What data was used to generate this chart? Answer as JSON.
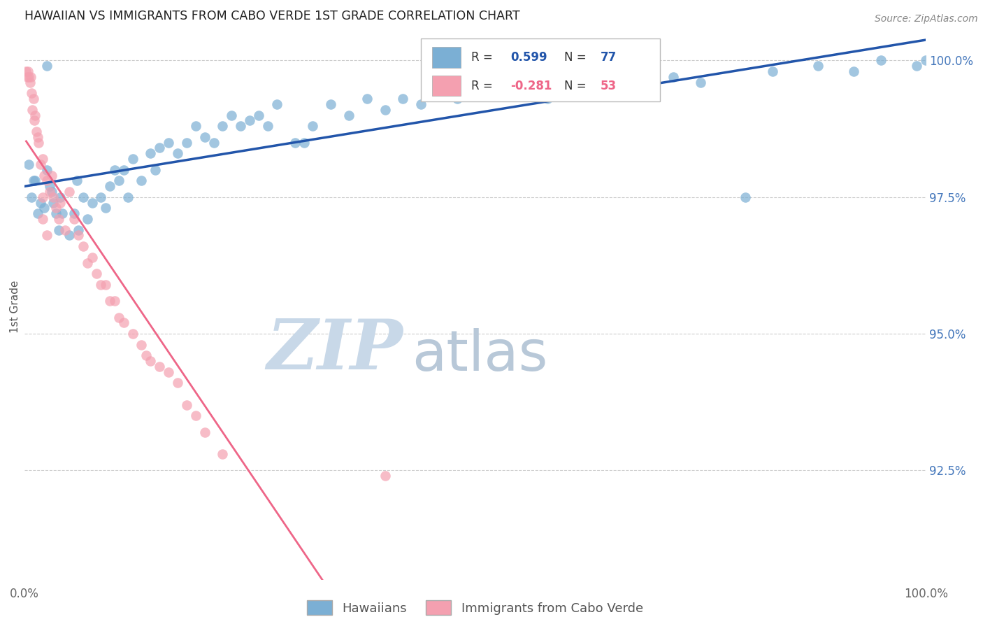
{
  "title": "HAWAIIAN VS IMMIGRANTS FROM CABO VERDE 1ST GRADE CORRELATION CHART",
  "source": "Source: ZipAtlas.com",
  "ylabel": "1st Grade",
  "xlim": [
    0.0,
    1.0
  ],
  "ylim": [
    0.905,
    1.005
  ],
  "yticks": [
    0.925,
    0.95,
    0.975,
    1.0
  ],
  "ytick_labels": [
    "92.5%",
    "95.0%",
    "97.5%",
    "100.0%"
  ],
  "xticks": [
    0.0,
    0.1,
    0.2,
    0.3,
    0.4,
    0.5,
    0.6,
    0.7,
    0.8,
    0.9,
    1.0
  ],
  "xtick_labels": [
    "0.0%",
    "",
    "",
    "",
    "",
    "",
    "",
    "",
    "",
    "",
    "100.0%"
  ],
  "blue_R": 0.599,
  "blue_N": 77,
  "pink_R": -0.281,
  "pink_N": 53,
  "blue_color": "#7BAFD4",
  "pink_color": "#F4A0B0",
  "blue_line_color": "#2255AA",
  "pink_line_color": "#EE6688",
  "legend_blue": "Hawaiians",
  "legend_pink": "Immigrants from Cabo Verde",
  "watermark_zip": "ZIP",
  "watermark_atlas": "atlas",
  "watermark_color_zip": "#C8D8E8",
  "watermark_color_atlas": "#B8C8D8",
  "background_color": "#FFFFFF",
  "title_color": "#222222",
  "right_tick_color": "#4477BB",
  "grid_color": "#CCCCCC",
  "blue_x": [
    0.005,
    0.008,
    0.01,
    0.012,
    0.015,
    0.018,
    0.022,
    0.025,
    0.025,
    0.028,
    0.03,
    0.032,
    0.035,
    0.038,
    0.04,
    0.042,
    0.05,
    0.055,
    0.058,
    0.065,
    0.07,
    0.075,
    0.085,
    0.09,
    0.095,
    0.1,
    0.105,
    0.11,
    0.115,
    0.12,
    0.13,
    0.14,
    0.15,
    0.16,
    0.17,
    0.18,
    0.19,
    0.2,
    0.21,
    0.22,
    0.23,
    0.24,
    0.25,
    0.27,
    0.28,
    0.3,
    0.32,
    0.34,
    0.36,
    0.38,
    0.4,
    0.42,
    0.44,
    0.46,
    0.5,
    0.52,
    0.55,
    0.58,
    0.62,
    0.65,
    0.68,
    0.72,
    0.75,
    0.8,
    0.83,
    0.88,
    0.92,
    0.95,
    0.99,
    1.0,
    0.06,
    0.145,
    0.26,
    0.31,
    0.48,
    0.57,
    0.7
  ],
  "blue_y": [
    0.981,
    0.975,
    0.978,
    0.978,
    0.972,
    0.974,
    0.973,
    0.98,
    0.999,
    0.977,
    0.976,
    0.974,
    0.972,
    0.969,
    0.975,
    0.972,
    0.968,
    0.972,
    0.978,
    0.975,
    0.971,
    0.974,
    0.975,
    0.973,
    0.977,
    0.98,
    0.978,
    0.98,
    0.975,
    0.982,
    0.978,
    0.983,
    0.984,
    0.985,
    0.983,
    0.985,
    0.988,
    0.986,
    0.985,
    0.988,
    0.99,
    0.988,
    0.989,
    0.988,
    0.992,
    0.985,
    0.988,
    0.992,
    0.99,
    0.993,
    0.991,
    0.993,
    0.992,
    0.994,
    0.994,
    0.996,
    0.994,
    0.993,
    0.994,
    0.997,
    0.997,
    0.997,
    0.996,
    0.975,
    0.998,
    0.999,
    0.998,
    1.0,
    0.999,
    1.0,
    0.969,
    0.98,
    0.99,
    0.985,
    0.993,
    0.995,
    0.997
  ],
  "pink_x": [
    0.002,
    0.003,
    0.004,
    0.005,
    0.006,
    0.007,
    0.008,
    0.009,
    0.01,
    0.011,
    0.012,
    0.013,
    0.015,
    0.016,
    0.018,
    0.02,
    0.022,
    0.025,
    0.028,
    0.03,
    0.032,
    0.035,
    0.038,
    0.04,
    0.045,
    0.05,
    0.055,
    0.06,
    0.065,
    0.07,
    0.075,
    0.08,
    0.085,
    0.09,
    0.095,
    0.1,
    0.105,
    0.11,
    0.12,
    0.13,
    0.135,
    0.14,
    0.15,
    0.16,
    0.17,
    0.18,
    0.19,
    0.2,
    0.22,
    0.02,
    0.02,
    0.025,
    0.4
  ],
  "pink_y": [
    0.998,
    0.997,
    0.998,
    0.997,
    0.996,
    0.997,
    0.994,
    0.991,
    0.993,
    0.989,
    0.99,
    0.987,
    0.986,
    0.985,
    0.981,
    0.982,
    0.979,
    0.978,
    0.976,
    0.979,
    0.975,
    0.973,
    0.971,
    0.974,
    0.969,
    0.976,
    0.971,
    0.968,
    0.966,
    0.963,
    0.964,
    0.961,
    0.959,
    0.959,
    0.956,
    0.956,
    0.953,
    0.952,
    0.95,
    0.948,
    0.946,
    0.945,
    0.944,
    0.943,
    0.941,
    0.937,
    0.935,
    0.932,
    0.928,
    0.975,
    0.971,
    0.968,
    0.924
  ]
}
